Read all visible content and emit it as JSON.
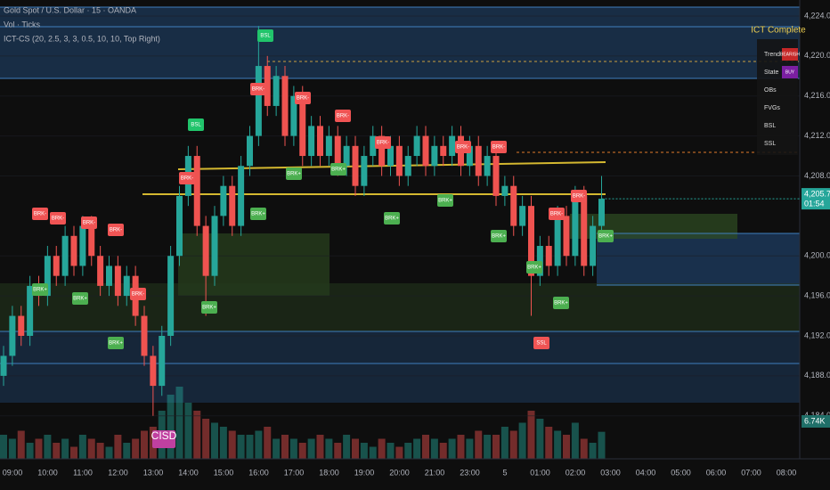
{
  "chart_data": {
    "type": "candlestick",
    "title": "Gold Spot / U.S. Dollar · 15 · OANDA",
    "volume_title": "Vol · Ticks",
    "indicator_title": "ICT-CS (20, 2.5, 3, 3, 0.5, 10, 10, Top Right)",
    "up_color": "#26a69a",
    "down_color": "#ef5350",
    "ylim": [
      4179.7,
      4225.6
    ],
    "yticks": [
      {
        "value": 4184,
        "label": "4,184.000"
      },
      {
        "value": 4188,
        "label": "4,188.000"
      },
      {
        "value": 4192,
        "label": "4,192.000"
      },
      {
        "value": 4196,
        "label": "4,196.000"
      },
      {
        "value": 4200,
        "label": "4,200.000"
      },
      {
        "value": 4208,
        "label": "4,208.000"
      },
      {
        "value": 4212,
        "label": "4,212.000"
      },
      {
        "value": 4216,
        "label": "4,216.000"
      },
      {
        "value": 4220,
        "label": "4,220.000"
      },
      {
        "value": 4224,
        "label": "4,224.000"
      }
    ],
    "time_labels": [
      "09:00",
      "10:00",
      "11:00",
      "12:00",
      "13:00",
      "14:00",
      "15:00",
      "16:00",
      "17:00",
      "18:00",
      "19:00",
      "20:00",
      "21:00",
      "23:00",
      "5",
      "01:00",
      "02:00",
      "03:00",
      "04:00",
      "05:00",
      "06:00",
      "07:00",
      "08:00"
    ],
    "ohlc": [
      [
        4188,
        4191,
        4187,
        4190
      ],
      [
        4190,
        4195,
        4189,
        4194
      ],
      [
        4194,
        4195,
        4191,
        4192
      ],
      [
        4192,
        4198,
        4191,
        4197
      ],
      [
        4197,
        4198,
        4195,
        4196
      ],
      [
        4196,
        4201,
        4195,
        4200
      ],
      [
        4200,
        4201,
        4197,
        4198
      ],
      [
        4198,
        4203,
        4197,
        4202
      ],
      [
        4202,
        4203,
        4198,
        4199
      ],
      [
        4199,
        4204,
        4198,
        4203
      ],
      [
        4203,
        4204,
        4199,
        4200
      ],
      [
        4200,
        4201,
        4196,
        4197
      ],
      [
        4197,
        4200,
        4196,
        4199
      ],
      [
        4199,
        4200,
        4195,
        4196
      ],
      [
        4196,
        4199,
        4195,
        4198
      ],
      [
        4198,
        4199,
        4193,
        4194
      ],
      [
        4194,
        4195,
        4189,
        4190
      ],
      [
        4190,
        4191,
        4184,
        4187
      ],
      [
        4187,
        4193,
        4186,
        4192
      ],
      [
        4192,
        4201,
        4191,
        4200
      ],
      [
        4200,
        4207,
        4199,
        4206
      ],
      [
        4206,
        4211,
        4205,
        4210
      ],
      [
        4210,
        4211,
        4202,
        4203
      ],
      [
        4203,
        4204,
        4194,
        4198
      ],
      [
        4198,
        4205,
        4197,
        4204
      ],
      [
        4204,
        4208,
        4203,
        4207
      ],
      [
        4207,
        4208,
        4202,
        4203
      ],
      [
        4203,
        4210,
        4202,
        4209
      ],
      [
        4209,
        4213,
        4208,
        4212
      ],
      [
        4212,
        4223,
        4211,
        4219
      ],
      [
        4219,
        4220,
        4214,
        4215
      ],
      [
        4215,
        4219,
        4214,
        4218
      ],
      [
        4218,
        4219,
        4211,
        4212
      ],
      [
        4212,
        4217,
        4211,
        4216
      ],
      [
        4216,
        4217,
        4209,
        4210
      ],
      [
        4210,
        4214,
        4209,
        4213
      ],
      [
        4213,
        4214,
        4209,
        4210
      ],
      [
        4210,
        4213,
        4209,
        4212
      ],
      [
        4212,
        4213,
        4208,
        4209
      ],
      [
        4209,
        4212,
        4208,
        4211
      ],
      [
        4211,
        4212,
        4206,
        4207
      ],
      [
        4207,
        4211,
        4206,
        4210
      ],
      [
        4210,
        4213,
        4209,
        4212
      ],
      [
        4212,
        4213,
        4208,
        4209
      ],
      [
        4209,
        4212,
        4208,
        4211
      ],
      [
        4211,
        4212,
        4207,
        4208
      ],
      [
        4208,
        4211,
        4207,
        4210
      ],
      [
        4210,
        4213,
        4209,
        4212
      ],
      [
        4212,
        4213,
        4208,
        4209
      ],
      [
        4209,
        4212,
        4208,
        4211
      ],
      [
        4211,
        4212,
        4209,
        4210
      ],
      [
        4210,
        4213,
        4209,
        4212
      ],
      [
        4212,
        4213,
        4208,
        4209
      ],
      [
        4209,
        4212,
        4208,
        4211
      ],
      [
        4211,
        4212,
        4207,
        4208
      ],
      [
        4208,
        4211,
        4207,
        4210
      ],
      [
        4210,
        4211,
        4205,
        4206
      ],
      [
        4206,
        4208,
        4205,
        4207
      ],
      [
        4207,
        4208,
        4202,
        4203
      ],
      [
        4203,
        4206,
        4202,
        4205
      ],
      [
        4205,
        4206,
        4194,
        4198
      ],
      [
        4198,
        4202,
        4197,
        4201
      ],
      [
        4201,
        4202,
        4198,
        4199
      ],
      [
        4199,
        4205,
        4198,
        4204
      ],
      [
        4204,
        4205,
        4199,
        4200
      ],
      [
        4200,
        4207,
        4199,
        4206
      ],
      [
        4206,
        4207,
        4198,
        4199
      ],
      [
        4199,
        4204,
        4198,
        4203
      ],
      [
        4203,
        4208,
        4202,
        4205.715
      ]
    ],
    "volume": [
      6,
      5,
      7,
      4,
      5,
      6,
      4,
      5,
      3,
      6,
      5,
      4,
      3,
      6,
      4,
      5,
      7,
      8,
      12,
      16,
      18,
      14,
      12,
      10,
      9,
      8,
      7,
      6,
      6,
      7,
      8,
      5,
      6,
      5,
      4,
      5,
      6,
      5,
      4,
      6,
      5,
      4,
      3,
      5,
      4,
      3,
      4,
      5,
      6,
      5,
      4,
      5,
      6,
      5,
      7,
      6,
      6,
      8,
      7,
      9,
      12,
      10,
      8,
      7,
      6,
      9,
      5,
      4,
      6.74
    ],
    "last_price_label": "4,205.715",
    "countdown": "01:54",
    "last_volume_label": "6.74K",
    "annotations": [
      "BRK-",
      "BRK+",
      "BSL",
      "SSL",
      "CISD"
    ],
    "table": {
      "title": "ICT Complete",
      "rows": [
        [
          "Trend",
          "BEARISH"
        ],
        [
          "State",
          "BUY"
        ],
        [
          "OBs"
        ],
        [
          "FVGs"
        ],
        [
          "BSL"
        ],
        [
          "SSL"
        ]
      ]
    }
  }
}
